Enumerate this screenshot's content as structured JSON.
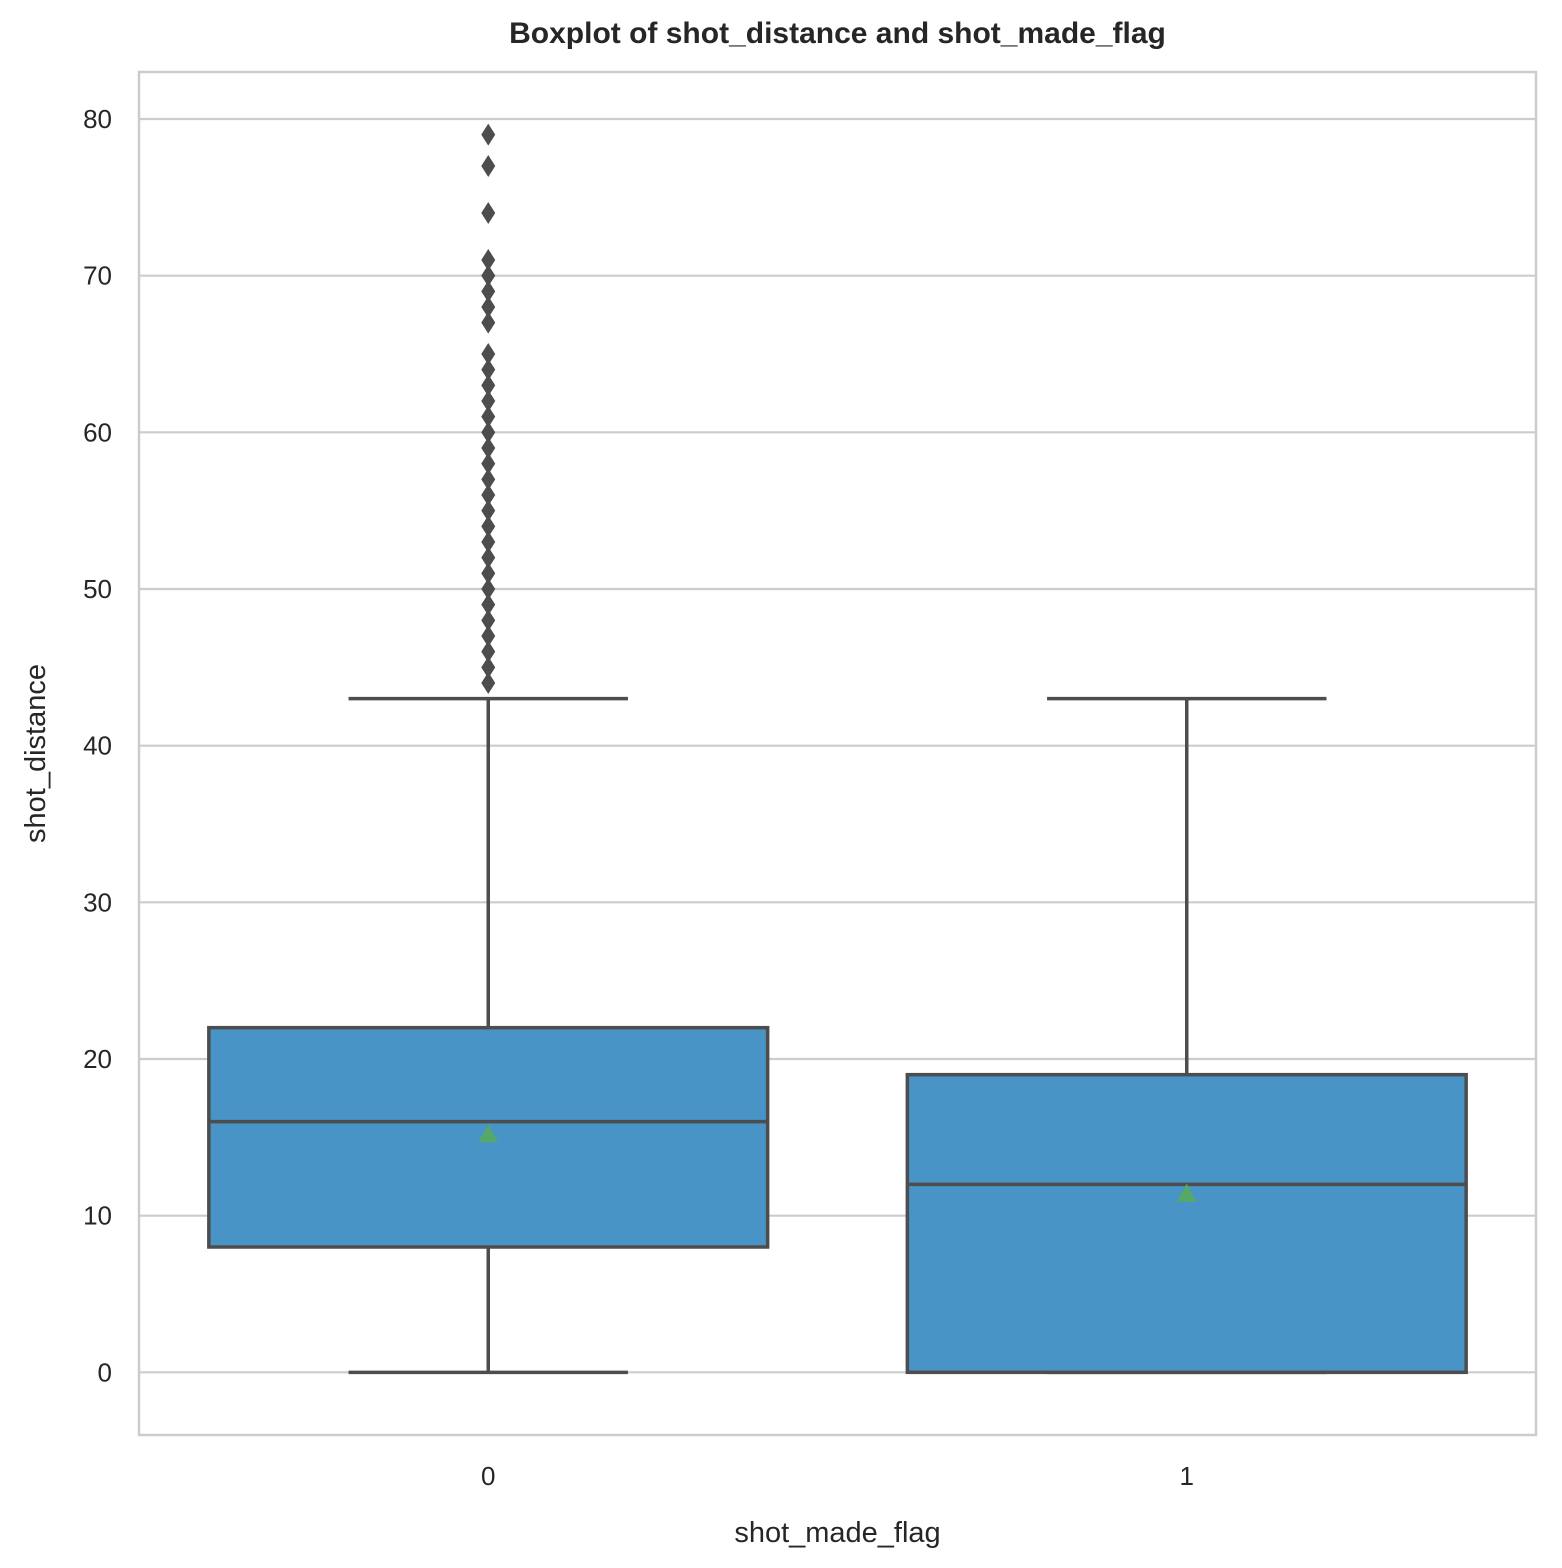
{
  "chart_data": {
    "type": "boxplot",
    "title": "Boxplot of shot_distance and shot_made_flag",
    "xlabel": "shot_made_flag",
    "ylabel": "shot_distance",
    "ylim": [
      -4,
      83
    ],
    "yticks": [
      0,
      10,
      20,
      30,
      40,
      50,
      60,
      70,
      80
    ],
    "categories": [
      "0",
      "1"
    ],
    "grid": "horizontal",
    "colors": {
      "box_fill": "#4894c6",
      "box_edge": "#4d4d4d",
      "mean_marker": "#55a868",
      "grid": "#cccccc",
      "frame": "#cccccc",
      "text": "#262626"
    },
    "boxes": [
      {
        "category": "0",
        "whisker_low": 0,
        "q1": 8,
        "median": 16,
        "q3": 22,
        "whisker_high": 43,
        "mean": 15.2,
        "outliers": [
          44,
          45,
          46,
          47,
          48,
          49,
          50,
          51,
          52,
          53,
          54,
          55,
          56,
          57,
          58,
          59,
          60,
          61,
          62,
          63,
          64,
          65,
          67,
          68,
          69,
          70,
          71,
          74,
          77,
          79
        ]
      },
      {
        "category": "1",
        "whisker_low": 0,
        "q1": 0,
        "median": 12,
        "q3": 19,
        "whisker_high": 43,
        "mean": 11.4,
        "outliers": []
      }
    ]
  }
}
